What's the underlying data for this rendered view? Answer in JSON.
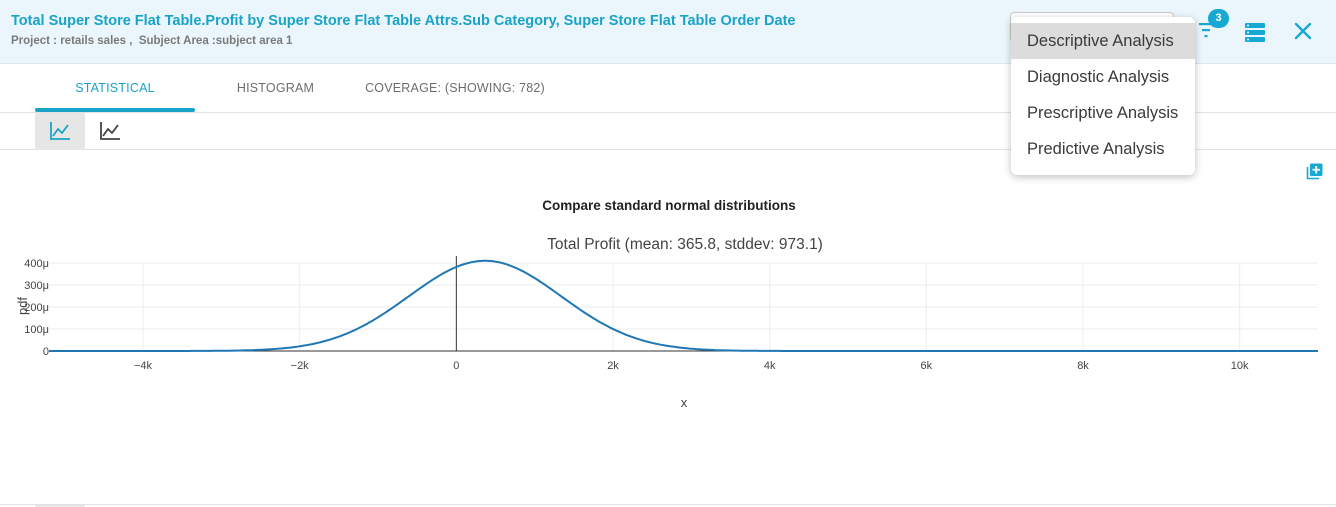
{
  "header": {
    "title": "Total Super Store Flat Table.Profit by Super Store Flat Table Attrs.Sub Category, Super Store Flat Table Order Date",
    "subtitle": "Project : retails sales ,  Subject Area :subject area 1",
    "filter_count": "3",
    "accent_color": "#1aa3c8",
    "icons": [
      "filter-icon",
      "database-icon",
      "close-icon"
    ]
  },
  "tabs": [
    {
      "label": "STATISTICAL",
      "active": true
    },
    {
      "label": "HISTOGRAM",
      "active": false
    },
    {
      "label": "COVERAGE: (SHOWING: 782)",
      "active": false
    }
  ],
  "toolbar": {
    "icons": [
      "line-chart-icon",
      "line-chart-alt-icon"
    ],
    "active_index": 0
  },
  "analysis_menu": {
    "options": [
      "Descriptive Analysis",
      "Diagnostic Analysis",
      "Prescriptive Analysis",
      "Predictive Analysis"
    ],
    "selected": "Descriptive Analysis"
  },
  "chart": {
    "heading": "Compare standard normal distributions",
    "icon": "add-chart-icon"
  },
  "chart_data": {
    "type": "line",
    "title": "Total Profit (mean: 365.8, stddev: 973.1)",
    "xlabel": "x",
    "ylabel": "pdf",
    "mean": 365.8,
    "stddev": 973.1,
    "xlim": [
      -5200,
      11000
    ],
    "ylim": [
      0,
      420
    ],
    "y_unit": "μ",
    "x_ticks": [
      {
        "value": -4000,
        "label": "−4k"
      },
      {
        "value": -2000,
        "label": "−2k"
      },
      {
        "value": 0,
        "label": "0"
      },
      {
        "value": 2000,
        "label": "2k"
      },
      {
        "value": 4000,
        "label": "4k"
      },
      {
        "value": 6000,
        "label": "6k"
      },
      {
        "value": 8000,
        "label": "8k"
      },
      {
        "value": 10000,
        "label": "10k"
      }
    ],
    "y_ticks": [
      {
        "value": 0,
        "label": "0"
      },
      {
        "value": 100,
        "label": "100μ"
      },
      {
        "value": 200,
        "label": "200μ"
      },
      {
        "value": 300,
        "label": "300μ"
      },
      {
        "value": 400,
        "label": "400μ"
      }
    ],
    "grid": true,
    "line_color": "#1f77b4"
  }
}
